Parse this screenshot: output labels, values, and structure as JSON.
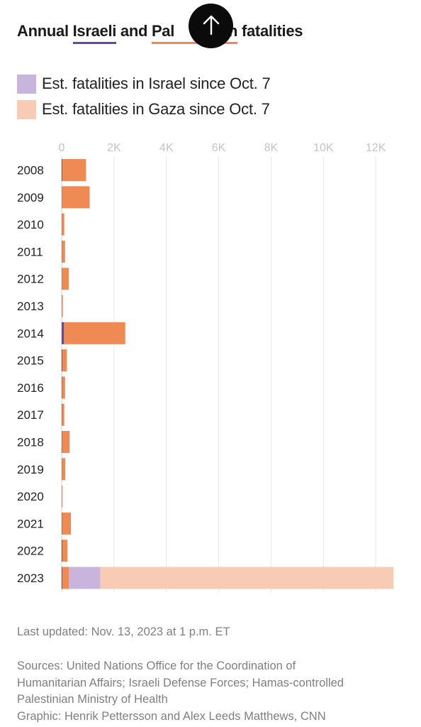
{
  "title": {
    "before": "Annual ",
    "israeli": "Israeli",
    "middle": " and ",
    "palestinian_start": "Pal",
    "palestinian_end": "an",
    "after": " fatalities"
  },
  "scroll_top_icon": "arrow-up-icon",
  "legend": [
    {
      "label": "Est. fatalities in Israel since Oct. 7",
      "color": "#c8b4dc"
    },
    {
      "label": "Est. fatalities in Gaza since Oct. 7",
      "color": "#f8cbb5"
    }
  ],
  "footer": {
    "updated": "Last updated: Nov. 13, 2023 at 1 p.m. ET",
    "sources": [
      "Sources: United Nations Office for the Coordination of",
      "Humanitarian Affairs; Israeli Defense Forces; Hamas-controlled",
      "Palestinian Ministry of Health",
      "Graphic: Henrik Pettersson and Alex Leeds Matthews, CNN"
    ]
  },
  "chart_data": {
    "type": "bar",
    "orientation": "horizontal",
    "stacked": true,
    "title": "Annual Israeli and Palestinian fatalities",
    "x_ticks": [
      "0",
      "2K",
      "4K",
      "6K",
      "8K",
      "10K",
      "12K"
    ],
    "xlim": [
      0,
      12700
    ],
    "grid": true,
    "legend_position": "top-left",
    "categories": [
      "2008",
      "2009",
      "2010",
      "2011",
      "2012",
      "2013",
      "2014",
      "2015",
      "2016",
      "2017",
      "2018",
      "2019",
      "2020",
      "2021",
      "2022",
      "2023"
    ],
    "series": [
      {
        "color": "#6a46a3",
        "values": [
          30,
          10,
          10,
          10,
          10,
          5,
          90,
          30,
          20,
          20,
          15,
          10,
          5,
          15,
          30,
          30
        ]
      },
      {
        "color": "#ef8a55",
        "values": [
          900,
          1060,
          90,
          120,
          260,
          40,
          2340,
          170,
          110,
          80,
          290,
          130,
          30,
          340,
          190,
          250
        ]
      },
      {
        "name": "Est. fatalities in Israel since Oct. 7",
        "color": "#c8b4dc",
        "values": [
          0,
          0,
          0,
          0,
          0,
          0,
          0,
          0,
          0,
          0,
          0,
          0,
          0,
          0,
          0,
          1200
        ]
      },
      {
        "name": "Est. fatalities in Gaza since Oct. 7",
        "color": "#f8cbb5",
        "values": [
          0,
          0,
          0,
          0,
          0,
          0,
          0,
          0,
          0,
          0,
          0,
          0,
          0,
          0,
          0,
          11200
        ]
      }
    ]
  }
}
